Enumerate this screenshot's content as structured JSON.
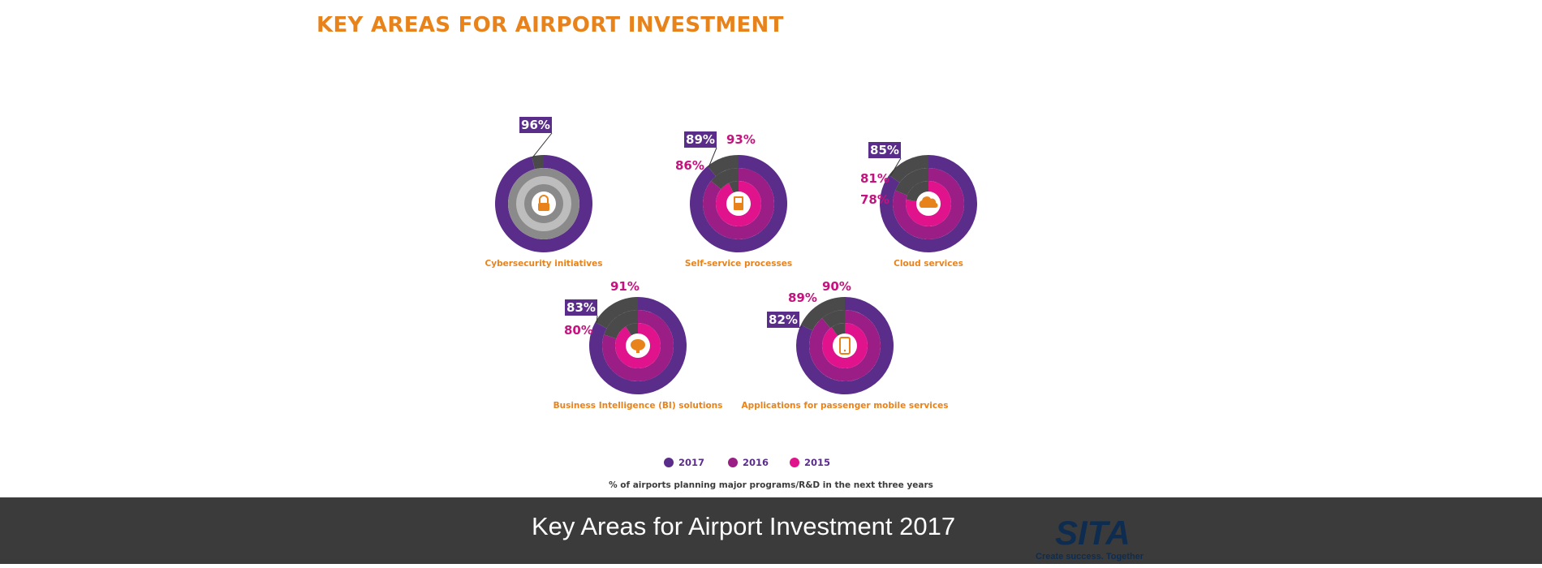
{
  "title": "KEY AREAS FOR AIRPORT INVESTMENT",
  "colors": {
    "y2017": "#5a2d8a",
    "y2016": "#9b1e86",
    "y2015": "#e0138c",
    "remainder": "#4a4a4a",
    "inner_gray": "#8a8a8a",
    "light_gray": "#bdbdbd",
    "accent": "#e8831c",
    "footer_bg": "#3b3b3b"
  },
  "chart_data": {
    "type": "pie",
    "subtype": "concentric-donut",
    "series_names": [
      "2017",
      "2016",
      "2015"
    ],
    "note": "% of airports planning major programs/R&D in the next three years",
    "legend_position": "bottom",
    "charts": [
      {
        "label": "Cybersecurity initiatives",
        "icon": "lock-icon",
        "values": [
          {
            "year": "2017",
            "value": 96
          }
        ]
      },
      {
        "label": "Self-service processes",
        "icon": "kiosk-icon",
        "values": [
          {
            "year": "2017",
            "value": 89
          },
          {
            "year": "2016",
            "value": 86
          },
          {
            "year": "2015",
            "value": 93
          }
        ]
      },
      {
        "label": "Cloud services",
        "icon": "cloud-icon",
        "values": [
          {
            "year": "2017",
            "value": 85
          },
          {
            "year": "2016",
            "value": 81
          },
          {
            "year": "2015",
            "value": 78
          }
        ]
      },
      {
        "label": "Business Intelligence (BI) solutions",
        "icon": "brain-icon",
        "values": [
          {
            "year": "2017",
            "value": 83
          },
          {
            "year": "2016",
            "value": 80
          },
          {
            "year": "2015",
            "value": 91
          }
        ]
      },
      {
        "label": "Applications for passenger mobile services",
        "icon": "smartphone-icon",
        "values": [
          {
            "year": "2017",
            "value": 82
          },
          {
            "year": "2016",
            "value": 89
          },
          {
            "year": "2015",
            "value": 90
          }
        ]
      }
    ]
  },
  "footer": {
    "caption": "Key Areas for Airport Investment 2017",
    "logo_text": "SITA",
    "tagline": "Create success. Together"
  }
}
